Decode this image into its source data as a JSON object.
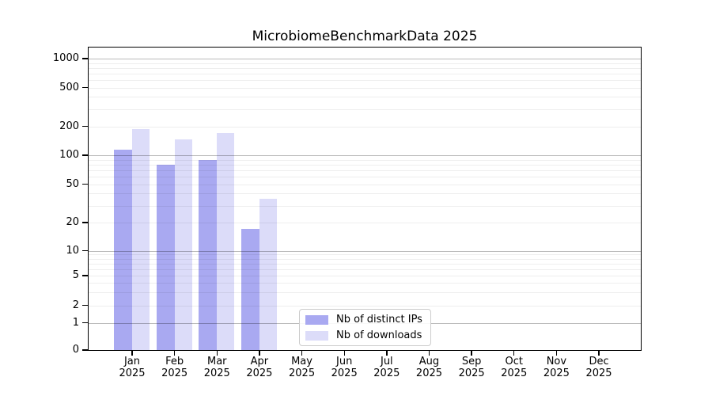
{
  "title": "MicrobiomeBenchmarkData 2025",
  "chart_data": {
    "type": "bar",
    "title": "MicrobiomeBenchmarkData 2025",
    "categories": [
      {
        "month": "Jan",
        "year": "2025"
      },
      {
        "month": "Feb",
        "year": "2025"
      },
      {
        "month": "Mar",
        "year": "2025"
      },
      {
        "month": "Apr",
        "year": "2025"
      },
      {
        "month": "May",
        "year": "2025"
      },
      {
        "month": "Jun",
        "year": "2025"
      },
      {
        "month": "Jul",
        "year": "2025"
      },
      {
        "month": "Aug",
        "year": "2025"
      },
      {
        "month": "Sep",
        "year": "2025"
      },
      {
        "month": "Oct",
        "year": "2025"
      },
      {
        "month": "Nov",
        "year": "2025"
      },
      {
        "month": "Dec",
        "year": "2025"
      }
    ],
    "series": [
      {
        "name": "Nb of distinct IPs",
        "color": "#a9a9f1",
        "values": [
          114,
          80,
          89,
          17,
          null,
          null,
          null,
          null,
          null,
          null,
          null,
          null
        ]
      },
      {
        "name": "Nb of downloads",
        "color": "#dcdcf9",
        "values": [
          186,
          147,
          170,
          35,
          null,
          null,
          null,
          null,
          null,
          null,
          null,
          null
        ]
      }
    ],
    "yscale": "symlog",
    "ylim": [
      0,
      1300
    ],
    "yticks": [
      0,
      1,
      2,
      5,
      10,
      20,
      50,
      100,
      200,
      500,
      1000
    ],
    "grid": {
      "major_lines": [
        1,
        10,
        100,
        1000
      ],
      "minor_subs": [
        2,
        3,
        4,
        5,
        6,
        7,
        8,
        9
      ],
      "orientation": "horizontal"
    },
    "legend_position": "inside lower-center"
  },
  "colors": {
    "background": "#ffffff",
    "spine": "#000000",
    "major_grid": "#b9b9b9",
    "minor_grid": "#ececec",
    "bar_ips": "#a9a9f1",
    "bar_downloads": "#dcdcf9"
  }
}
